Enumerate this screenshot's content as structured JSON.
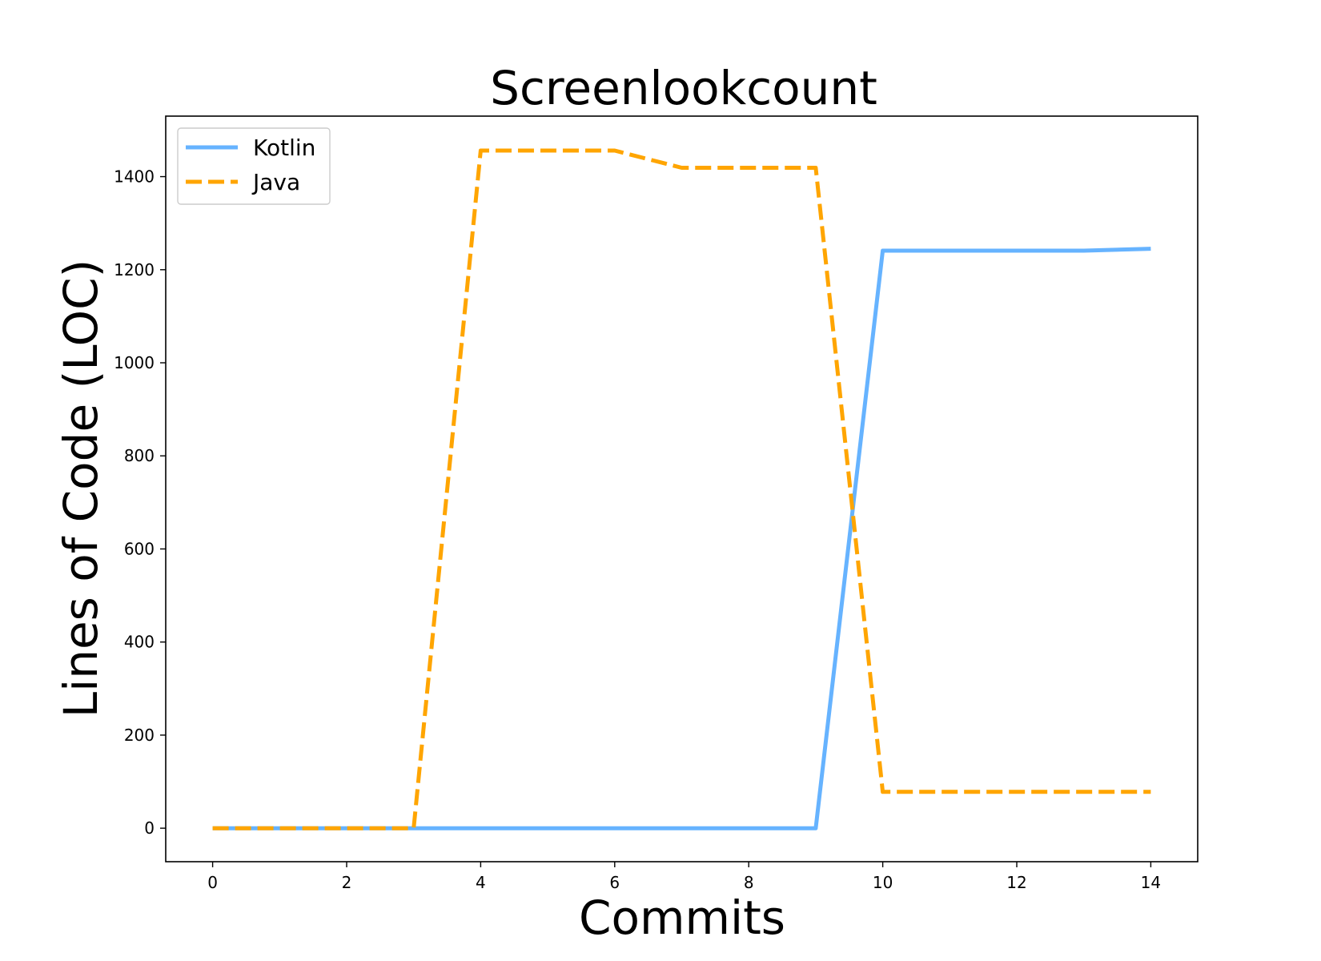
{
  "chart_data": {
    "type": "line",
    "title": "Screenlookcount",
    "xlabel": "Commits",
    "ylabel": "Lines of Code (LOC)",
    "xlim": [
      -0.7,
      14.7
    ],
    "ylim": [
      -72,
      1530
    ],
    "xticks": [
      0,
      2,
      4,
      6,
      8,
      10,
      12,
      14
    ],
    "yticks": [
      0,
      200,
      400,
      600,
      800,
      1000,
      1200,
      1400
    ],
    "legend_position": "upper-left",
    "grid": false,
    "series": [
      {
        "name": "Kotlin",
        "color": "#66b3ff",
        "style": "solid",
        "x": [
          0,
          1,
          2,
          3,
          4,
          5,
          6,
          7,
          8,
          9,
          10,
          11,
          12,
          13,
          14
        ],
        "y": [
          0,
          0,
          0,
          0,
          0,
          0,
          0,
          0,
          0,
          0,
          1241,
          1241,
          1241,
          1241,
          1245
        ]
      },
      {
        "name": "Java",
        "color": "#ffa500",
        "style": "dashed",
        "x": [
          0,
          1,
          2,
          3,
          4,
          5,
          6,
          7,
          8,
          9,
          10,
          11,
          12,
          13,
          14
        ],
        "y": [
          0,
          0,
          0,
          0,
          1456,
          1456,
          1456,
          1419,
          1419,
          1419,
          78,
          78,
          78,
          78,
          78
        ]
      }
    ]
  }
}
